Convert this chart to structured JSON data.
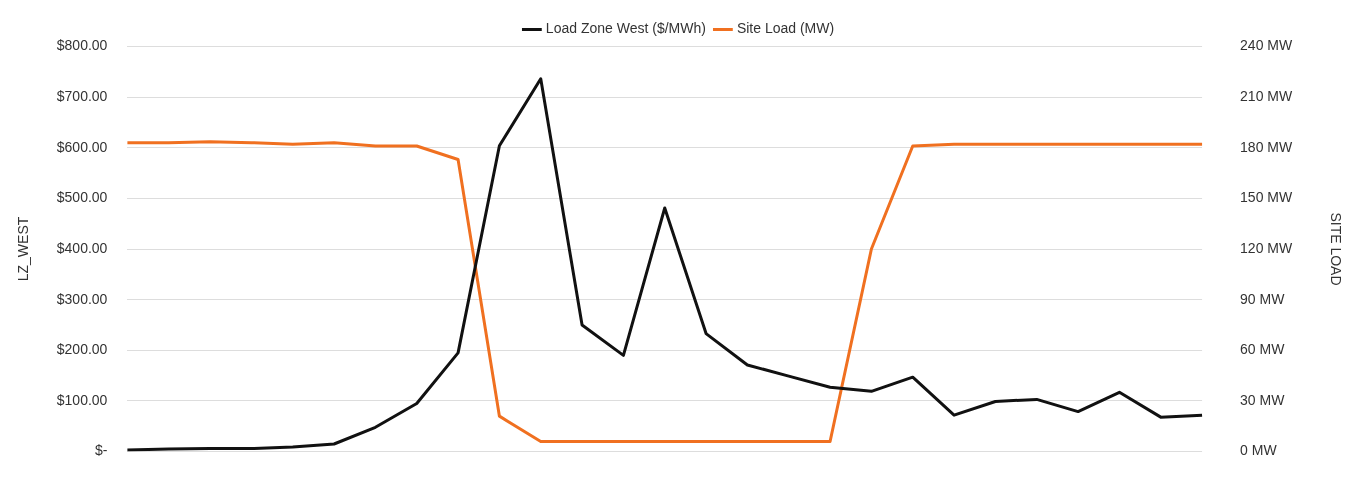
{
  "chart_data": {
    "type": "line",
    "categories": [
      null,
      null,
      null,
      null,
      null,
      null,
      null,
      null,
      null,
      null,
      null,
      null,
      null,
      null,
      null,
      null,
      null,
      null,
      null,
      null,
      null,
      null,
      null,
      null,
      null,
      null,
      null
    ],
    "ylabel": "LZ_WEST",
    "y2label": "SITE LOAD",
    "series": [
      {
        "name": "Load Zone West ($/MWh)",
        "color": "#111111",
        "values": [
          3,
          5,
          6,
          6,
          9,
          15,
          48,
          95,
          195,
          604,
          736,
          250,
          190,
          481,
          233,
          171,
          149,
          127,
          119,
          147,
          72,
          99,
          103,
          79,
          117,
          68,
          72
        ]
      },
      {
        "name": "Site Load (MW)",
        "color": "#f07020",
        "axis": "y2",
        "values": [
          183,
          183,
          183.5,
          183,
          182,
          183,
          181,
          181,
          173,
          21,
          6,
          6,
          6,
          6,
          6,
          6,
          6,
          6,
          120,
          181,
          182,
          182,
          182,
          182,
          182,
          182,
          182
        ]
      }
    ],
    "ylim": [
      0,
      800
    ],
    "yticks": [
      {
        "value": 0,
        "label": "$-"
      },
      {
        "value": 100,
        "label": "$100.00"
      },
      {
        "value": 200,
        "label": "$200.00"
      },
      {
        "value": 300,
        "label": "$300.00"
      },
      {
        "value": 400,
        "label": "$400.00"
      },
      {
        "value": 500,
        "label": "$500.00"
      },
      {
        "value": 600,
        "label": "$600.00"
      },
      {
        "value": 700,
        "label": "$700.00"
      },
      {
        "value": 800,
        "label": "$800.00"
      }
    ],
    "y2lim": [
      0,
      240
    ],
    "y2ticks": [
      {
        "value": 0,
        "label": "0 MW"
      },
      {
        "value": 30,
        "label": "30 MW"
      },
      {
        "value": 60,
        "label": "60 MW"
      },
      {
        "value": 90,
        "label": "90 MW"
      },
      {
        "value": 120,
        "label": "120 MW"
      },
      {
        "value": 150,
        "label": "150 MW"
      },
      {
        "value": 180,
        "label": "180 MW"
      },
      {
        "value": 210,
        "label": "210 MW"
      },
      {
        "value": 240,
        "label": "240 MW"
      }
    ],
    "grid": "y",
    "legend": "top",
    "marker": "none",
    "line_style": "solid"
  }
}
